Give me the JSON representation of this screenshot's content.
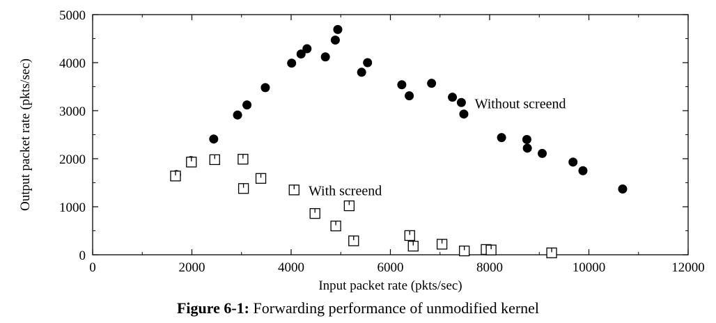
{
  "chart_data": {
    "type": "scatter",
    "title": "",
    "xlabel": "Input packet rate (pkts/sec)",
    "ylabel": "Output packet rate (pkts/sec)",
    "xlim": [
      0,
      12000
    ],
    "ylim": [
      0,
      5000
    ],
    "x_ticks": [
      0,
      2000,
      4000,
      6000,
      8000,
      10000,
      12000
    ],
    "y_ticks": [
      0,
      1000,
      2000,
      3000,
      4000,
      5000
    ],
    "grid": false,
    "legend": "none",
    "series": [
      {
        "name": "Without screend",
        "marker": "filled-circle",
        "x": [
          1690,
          1980,
          2440,
          2920,
          3110,
          3480,
          4010,
          4200,
          4320,
          4690,
          4890,
          4940,
          5420,
          5540,
          6230,
          6380,
          6830,
          7250,
          7430,
          7480,
          8240,
          8750,
          8760,
          9060,
          9680,
          9880,
          10680
        ],
        "y": [
          1670,
          1960,
          2410,
          2910,
          3120,
          3480,
          3990,
          4180,
          4290,
          4120,
          4470,
          4690,
          3800,
          4000,
          3540,
          3310,
          3570,
          3280,
          3170,
          2930,
          2440,
          2400,
          2220,
          2110,
          1930,
          1750,
          1370
        ]
      },
      {
        "name": "With screend",
        "marker": "open-square",
        "x": [
          1670,
          1990,
          2460,
          3030,
          3040,
          3390,
          4060,
          4480,
          4900,
          5170,
          5260,
          6390,
          6460,
          7040,
          7490,
          7930,
          8030,
          9250
        ],
        "y": [
          1640,
          1930,
          1980,
          1990,
          1380,
          1590,
          1350,
          860,
          600,
          1020,
          290,
          400,
          180,
          220,
          80,
          110,
          100,
          40
        ]
      }
    ],
    "annotations": [
      {
        "text": "Without screend",
        "x": 7700,
        "y": 3150
      },
      {
        "text": "With screend",
        "x": 4350,
        "y": 1340
      }
    ]
  },
  "caption": {
    "label": "Figure 6-1:",
    "text": "Forwarding performance of unmodified kernel"
  }
}
